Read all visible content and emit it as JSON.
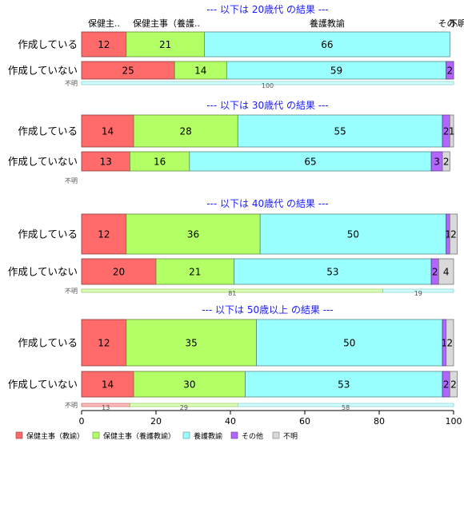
{
  "chart_data": {
    "type": "bar",
    "orientation": "horizontal-stacked-percent",
    "xlim": [
      0,
      100
    ],
    "xticks": [
      0,
      20,
      40,
      60,
      80,
      100
    ],
    "categories": [
      "保健主事（教諭）",
      "保健主事（養護教諭）",
      "養護教諭",
      "その他",
      "不明"
    ],
    "category_header_labels": [
      "保健主..",
      "保健主事（養護..",
      "養護教諭",
      "その..",
      "不明"
    ],
    "colors": [
      "#ff6b6b",
      "#b3ff66",
      "#99ffff",
      "#b266ff",
      "#d9d9d9"
    ],
    "legend": {
      "position": "bottom-left",
      "labels": [
        "保健主事（教諭）",
        "保健主事（養護教諭）",
        "養護教諭",
        "その他",
        "不明"
      ]
    },
    "panels": [
      {
        "title": "--- 以下は 20歳代 の結果 ---",
        "rows": [
          {
            "label": "作成している",
            "values": [
              12,
              21,
              66,
              0,
              0
            ]
          },
          {
            "label": "作成していない",
            "values": [
              25,
              14,
              59,
              2,
              0
            ]
          },
          {
            "label": "不明",
            "values": [
              0,
              0,
              100,
              0,
              0
            ]
          }
        ]
      },
      {
        "title": "--- 以下は 30歳代 の結果 ---",
        "rows": [
          {
            "label": "作成している",
            "values": [
              14,
              28,
              55,
              2,
              1
            ]
          },
          {
            "label": "作成していない",
            "values": [
              13,
              16,
              65,
              3,
              2
            ]
          },
          {
            "label": "不明",
            "values": [
              0,
              0,
              0,
              0,
              0
            ]
          }
        ]
      },
      {
        "title": "--- 以下は 40歳代 の結果 ---",
        "rows": [
          {
            "label": "作成している",
            "values": [
              12,
              36,
              50,
              1,
              2
            ]
          },
          {
            "label": "作成していない",
            "values": [
              20,
              21,
              53,
              2,
              4
            ]
          },
          {
            "label": "不明",
            "values": [
              0,
              81,
              19,
              0,
              0
            ]
          }
        ]
      },
      {
        "title": "--- 以下は 50歳以上 の結果 ---",
        "rows": [
          {
            "label": "作成している",
            "values": [
              12,
              35,
              50,
              1,
              2
            ]
          },
          {
            "label": "作成していない",
            "values": [
              14,
              30,
              53,
              2,
              2
            ]
          },
          {
            "label": "不明",
            "values": [
              13,
              29,
              58,
              0,
              0
            ]
          }
        ]
      }
    ]
  }
}
